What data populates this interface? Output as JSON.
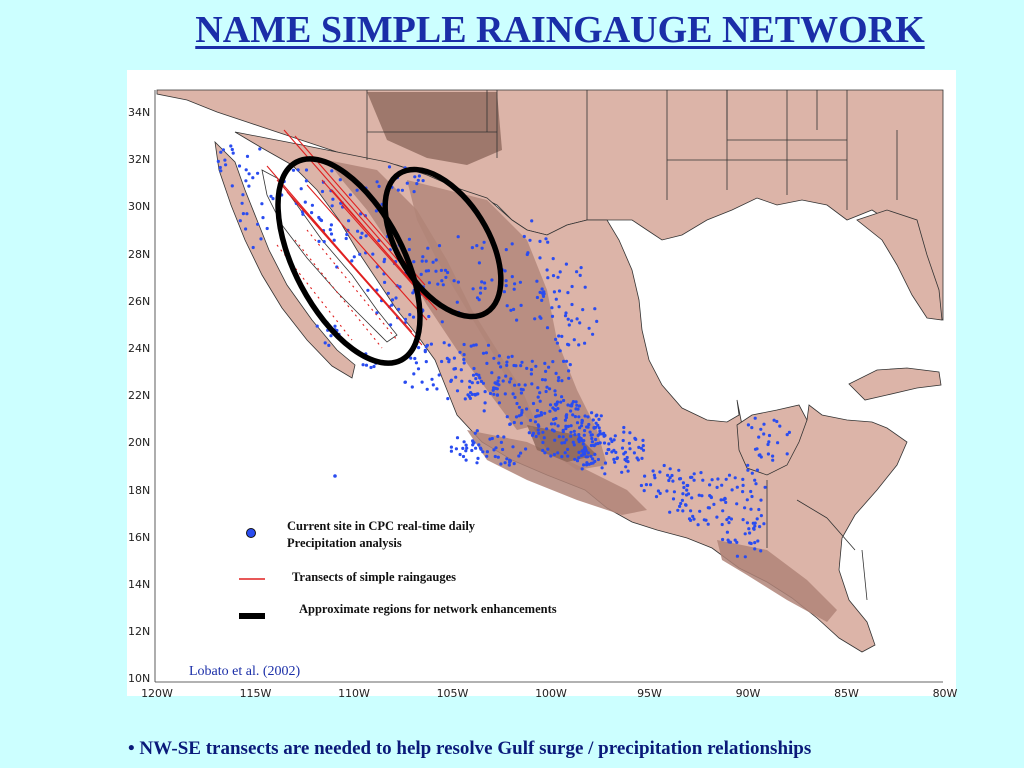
{
  "title": "NAME SIMPLE RAINGAUGE NETWORK",
  "map": {
    "lat_ticks": [
      "34N",
      "32N",
      "30N",
      "28N",
      "26N",
      "24N",
      "22N",
      "20N",
      "18N",
      "16N",
      "14N",
      "12N",
      "10N"
    ],
    "lon_ticks": [
      "120W",
      "115W",
      "110W",
      "105W",
      "100W",
      "95W",
      "90W",
      "85W",
      "80W"
    ],
    "colors": {
      "land": "#dcb4a8",
      "highland": "#b08478",
      "peak": "#8a6458",
      "ocean": "#ffffff",
      "gauge": "#2a4cf0",
      "transect": "#e02020",
      "region": "#000000"
    }
  },
  "legend": {
    "gauge_line1": "Current site in CPC real-time daily",
    "gauge_line2": "Precipitation analysis",
    "transect": "Transects of simple raingauges",
    "region": "Approximate regions for network enhancements"
  },
  "credit": "Lobato et al.  (2002)",
  "bullet": "• NW-SE transects are needed to help resolve Gulf surge / precipitation relationships"
}
